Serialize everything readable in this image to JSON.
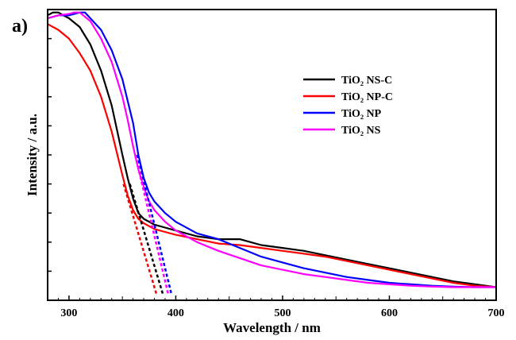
{
  "chart_data": {
    "type": "line",
    "panel_label": "a)",
    "xlabel": "Wavelength / nm",
    "ylabel": "Intensity / a.u.",
    "xlim": [
      280,
      700
    ],
    "ylim": [
      0,
      1
    ],
    "x_ticks": [
      300,
      400,
      500,
      600,
      700
    ],
    "x_tick_labels": [
      "300",
      "400",
      "500",
      "600",
      "700"
    ],
    "y_minor_ticks": [
      0.1,
      0.2,
      0.3,
      0.4,
      0.5,
      0.6,
      0.7,
      0.8,
      0.9
    ],
    "grid": false,
    "legend_position": "top-right",
    "series": [
      {
        "name": "TiO₂ NS-C",
        "color": "#000000",
        "points": [
          [
            280,
            0.98
          ],
          [
            285,
            0.99
          ],
          [
            290,
            0.99
          ],
          [
            300,
            0.97
          ],
          [
            310,
            0.94
          ],
          [
            320,
            0.88
          ],
          [
            330,
            0.79
          ],
          [
            340,
            0.67
          ],
          [
            350,
            0.5
          ],
          [
            355,
            0.42
          ],
          [
            360,
            0.35
          ],
          [
            365,
            0.3
          ],
          [
            370,
            0.28
          ],
          [
            380,
            0.26
          ],
          [
            390,
            0.25
          ],
          [
            400,
            0.24
          ],
          [
            420,
            0.22
          ],
          [
            440,
            0.21
          ],
          [
            450,
            0.21
          ],
          [
            460,
            0.21
          ],
          [
            480,
            0.19
          ],
          [
            500,
            0.18
          ],
          [
            520,
            0.17
          ],
          [
            540,
            0.155
          ],
          [
            560,
            0.14
          ],
          [
            580,
            0.125
          ],
          [
            600,
            0.11
          ],
          [
            620,
            0.095
          ],
          [
            640,
            0.08
          ],
          [
            660,
            0.065
          ],
          [
            680,
            0.055
          ],
          [
            700,
            0.045
          ]
        ]
      },
      {
        "name": "TiO₂ NP-C",
        "color": "#ff0000",
        "points": [
          [
            280,
            0.95
          ],
          [
            290,
            0.93
          ],
          [
            300,
            0.9
          ],
          [
            310,
            0.85
          ],
          [
            320,
            0.79
          ],
          [
            330,
            0.7
          ],
          [
            340,
            0.58
          ],
          [
            350,
            0.43
          ],
          [
            355,
            0.36
          ],
          [
            360,
            0.31
          ],
          [
            365,
            0.28
          ],
          [
            370,
            0.265
          ],
          [
            380,
            0.245
          ],
          [
            390,
            0.235
          ],
          [
            400,
            0.225
          ],
          [
            420,
            0.21
          ],
          [
            440,
            0.195
          ],
          [
            460,
            0.19
          ],
          [
            480,
            0.18
          ],
          [
            500,
            0.17
          ],
          [
            520,
            0.16
          ],
          [
            540,
            0.15
          ],
          [
            560,
            0.135
          ],
          [
            580,
            0.12
          ],
          [
            600,
            0.105
          ],
          [
            620,
            0.09
          ],
          [
            640,
            0.075
          ],
          [
            660,
            0.06
          ],
          [
            680,
            0.05
          ],
          [
            700,
            0.045
          ]
        ]
      },
      {
        "name": "TiO₂ NP",
        "color": "#0000ff",
        "points": [
          [
            280,
            0.97
          ],
          [
            290,
            0.98
          ],
          [
            300,
            0.98
          ],
          [
            310,
            0.99
          ],
          [
            315,
            0.99
          ],
          [
            320,
            0.97
          ],
          [
            330,
            0.93
          ],
          [
            340,
            0.86
          ],
          [
            350,
            0.76
          ],
          [
            360,
            0.61
          ],
          [
            365,
            0.5
          ],
          [
            370,
            0.42
          ],
          [
            375,
            0.37
          ],
          [
            380,
            0.34
          ],
          [
            390,
            0.3
          ],
          [
            400,
            0.27
          ],
          [
            420,
            0.23
          ],
          [
            440,
            0.21
          ],
          [
            460,
            0.18
          ],
          [
            480,
            0.15
          ],
          [
            500,
            0.13
          ],
          [
            520,
            0.11
          ],
          [
            540,
            0.095
          ],
          [
            560,
            0.08
          ],
          [
            580,
            0.07
          ],
          [
            600,
            0.06
          ],
          [
            620,
            0.055
          ],
          [
            640,
            0.05
          ],
          [
            660,
            0.047
          ],
          [
            680,
            0.045
          ],
          [
            700,
            0.045
          ]
        ]
      },
      {
        "name": "TiO₂ NS",
        "color": "#ff00ff",
        "points": [
          [
            280,
            0.97
          ],
          [
            290,
            0.98
          ],
          [
            300,
            0.985
          ],
          [
            305,
            0.99
          ],
          [
            310,
            0.99
          ],
          [
            320,
            0.96
          ],
          [
            330,
            0.9
          ],
          [
            340,
            0.82
          ],
          [
            350,
            0.7
          ],
          [
            355,
            0.62
          ],
          [
            360,
            0.53
          ],
          [
            365,
            0.45
          ],
          [
            370,
            0.39
          ],
          [
            375,
            0.34
          ],
          [
            380,
            0.31
          ],
          [
            390,
            0.27
          ],
          [
            400,
            0.24
          ],
          [
            420,
            0.2
          ],
          [
            440,
            0.17
          ],
          [
            460,
            0.145
          ],
          [
            480,
            0.12
          ],
          [
            500,
            0.105
          ],
          [
            520,
            0.09
          ],
          [
            540,
            0.08
          ],
          [
            560,
            0.07
          ],
          [
            580,
            0.06
          ],
          [
            600,
            0.055
          ],
          [
            620,
            0.05
          ],
          [
            640,
            0.047
          ],
          [
            660,
            0.045
          ],
          [
            680,
            0.045
          ],
          [
            700,
            0.045
          ]
        ]
      }
    ],
    "tangent_lines": [
      {
        "series": "TiO₂ NP-C",
        "color": "#ff0000",
        "points": [
          [
            351,
            0.4
          ],
          [
            382,
            0.02
          ]
        ]
      },
      {
        "series": "TiO₂ NS-C",
        "color": "#000000",
        "points": [
          [
            357,
            0.4
          ],
          [
            388,
            0.02
          ]
        ]
      },
      {
        "series": "TiO₂ NS",
        "color": "#ff00ff",
        "points": [
          [
            362,
            0.5
          ],
          [
            393,
            0.02
          ]
        ]
      },
      {
        "series": "TiO₂ NP",
        "color": "#0000ff",
        "points": [
          [
            364,
            0.5
          ],
          [
            396,
            0.02
          ]
        ]
      }
    ]
  }
}
